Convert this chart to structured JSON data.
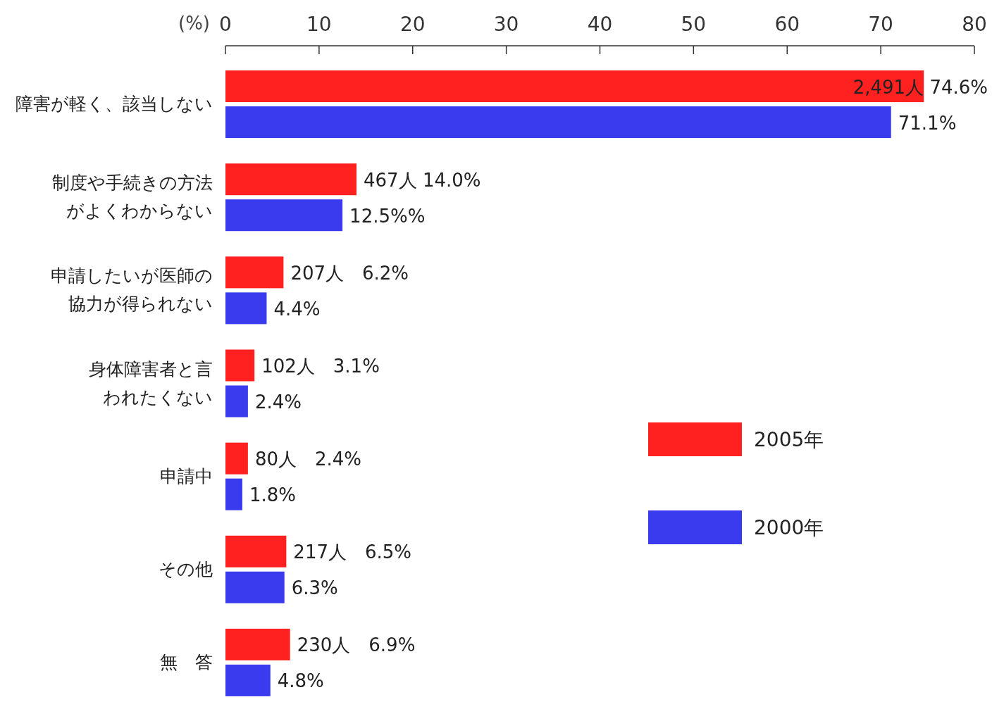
{
  "chart_data": {
    "type": "bar",
    "orientation": "horizontal",
    "xlabel": "(%)",
    "xlim": [
      0,
      80
    ],
    "xticks": [
      0,
      10,
      20,
      30,
      40,
      50,
      60,
      70,
      80
    ],
    "grid": false,
    "legend": "right",
    "categories": [
      "障害が軽く、該当しない",
      "制度や手続きの方法がよくわからない",
      "申請したいが医師の協力が得られない",
      "身体障害者と言われたくない",
      "申請中",
      "その他",
      "無　答"
    ],
    "series": [
      {
        "name": "2005年",
        "color": "#ff2020",
        "values": [
          74.6,
          14.0,
          6.2,
          3.1,
          2.4,
          6.5,
          6.9
        ],
        "value_labels": [
          "2,491人 74.6%",
          "467人 14.0%",
          "207人　6.2%",
          "102人　3.1%",
          "80人　2.4%",
          "217人　6.5%",
          "230人　6.9%"
        ]
      },
      {
        "name": "2000年",
        "color": "#3a3aee",
        "values": [
          71.1,
          12.5,
          4.4,
          2.4,
          1.8,
          6.3,
          4.8
        ],
        "value_labels": [
          "71.1%",
          "12.5%%",
          "4.4%",
          "2.4%",
          "1.8%",
          "6.3%",
          "4.8%"
        ]
      }
    ]
  }
}
